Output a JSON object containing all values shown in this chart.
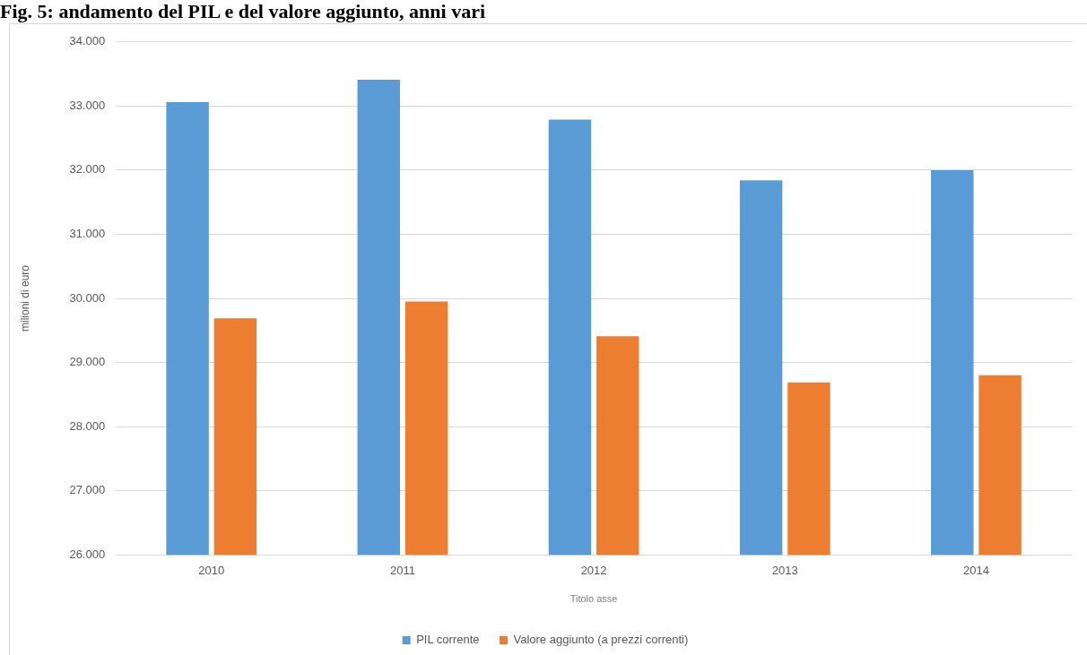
{
  "chart_data": {
    "type": "bar",
    "title": "Fig. 5: andamento del PIL e del valore aggiunto, anni vari",
    "ylabel": "milioni di euro",
    "xlabel": "Titolo asse",
    "categories": [
      "2010",
      "2011",
      "2012",
      "2013",
      "2014"
    ],
    "series": [
      {
        "name": "PIL corrente",
        "color": "#5b9bd5",
        "values": [
          33060,
          33410,
          32790,
          31840,
          32000
        ]
      },
      {
        "name": "Valore aggiunto (a prezzi correnti)",
        "color": "#ed7d31",
        "values": [
          29690,
          29950,
          29410,
          28690,
          28800
        ]
      }
    ],
    "ylim": [
      26000,
      34000
    ],
    "yticks": [
      {
        "value": 26000,
        "label": "26.000"
      },
      {
        "value": 27000,
        "label": "27.000"
      },
      {
        "value": 28000,
        "label": "28.000"
      },
      {
        "value": 29000,
        "label": "29.000"
      },
      {
        "value": 30000,
        "label": "30.000"
      },
      {
        "value": 31000,
        "label": "31.000"
      },
      {
        "value": 32000,
        "label": "32.000"
      },
      {
        "value": 33000,
        "label": "33.000"
      },
      {
        "value": 34000,
        "label": "34.000"
      }
    ],
    "grid": "y",
    "legend": "bottom"
  }
}
